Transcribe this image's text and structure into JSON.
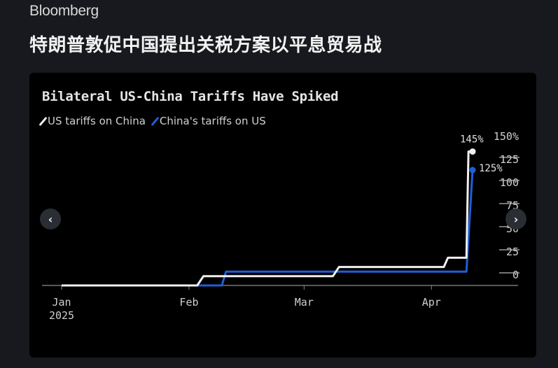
{
  "brand": "Bloomberg",
  "headline": "特朗普敦促中国提出关税方案以平息贸易战",
  "nav": {
    "prev": "‹",
    "next": "›"
  },
  "colors": {
    "us": "#f0f0f0",
    "china": "#1f5fd6"
  },
  "chart_data": {
    "type": "line",
    "title": "Bilateral US-China Tariffs Have Spiked",
    "xlabel": "",
    "ylabel": "",
    "x_unit": "days since Jan 1 2025",
    "xlim": [
      0,
      100
    ],
    "ylim": [
      0,
      150
    ],
    "x_ticks": [
      {
        "x": 0,
        "label": "Jan",
        "sub": "2025"
      },
      {
        "x": 31,
        "label": "Feb",
        "sub": ""
      },
      {
        "x": 59,
        "label": "Mar",
        "sub": ""
      },
      {
        "x": 90,
        "label": "Apr",
        "sub": ""
      }
    ],
    "y_ticks": [
      {
        "v": 0,
        "label": "0"
      },
      {
        "v": 25,
        "label": "25"
      },
      {
        "v": 50,
        "label": "50"
      },
      {
        "v": 75,
        "label": "75"
      },
      {
        "v": 100,
        "label": "100"
      },
      {
        "v": 125,
        "label": "125"
      },
      {
        "v": 150,
        "label": "150%"
      }
    ],
    "legend_position": "top-left",
    "series": [
      {
        "name": "US tariffs on China",
        "color": "#f0f0f0",
        "end_label": "145%",
        "points": [
          [
            0,
            0
          ],
          [
            33,
            0
          ],
          [
            34.5,
            10
          ],
          [
            66,
            10
          ],
          [
            67.5,
            20
          ],
          [
            93,
            20
          ],
          [
            94,
            30
          ],
          [
            98.5,
            30
          ],
          [
            99,
            145
          ],
          [
            100,
            145
          ]
        ]
      },
      {
        "name": "China's tariffs on US",
        "color": "#1f5fd6",
        "end_label": "125%",
        "points": [
          [
            0,
            0
          ],
          [
            39,
            0
          ],
          [
            40,
            15
          ],
          [
            98.5,
            15
          ],
          [
            100,
            125
          ]
        ]
      }
    ]
  }
}
